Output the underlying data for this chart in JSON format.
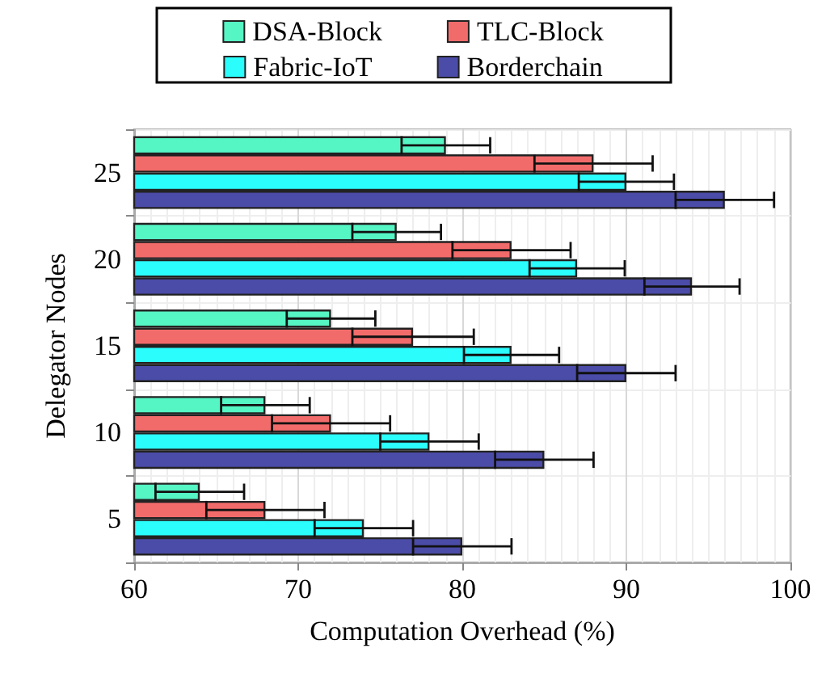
{
  "chart_data": {
    "type": "bar",
    "orientation": "horizontal",
    "xlabel": "Computation Overhead (%)",
    "ylabel": "Delegator Nodes",
    "categories": [
      "25",
      "20",
      "15",
      "10",
      "5"
    ],
    "series": [
      {
        "name": "DSA-Block",
        "color": "#55f5c4",
        "values": [
          79,
          76,
          72,
          68,
          64
        ],
        "errors": [
          2.7,
          2.7,
          2.7,
          2.7,
          2.7
        ]
      },
      {
        "name": "TLC-Block",
        "color": "#f26b6b",
        "values": [
          88,
          83,
          77,
          72,
          68
        ],
        "errors": [
          3.6,
          3.6,
          3.7,
          3.6,
          3.6
        ]
      },
      {
        "name": "Fabric-IoT",
        "color": "#2bfcfc",
        "values": [
          90,
          87,
          83,
          78,
          74
        ],
        "errors": [
          2.9,
          2.9,
          2.9,
          3,
          3
        ]
      },
      {
        "name": "Borderchain",
        "color": "#4b4ba8",
        "values": [
          96,
          94,
          90,
          85,
          80
        ],
        "errors": [
          3,
          2.9,
          3,
          3,
          3
        ]
      }
    ],
    "xlim": [
      60,
      100
    ],
    "xticks": [
      60,
      70,
      80,
      90,
      100
    ],
    "grid": true,
    "legend": "top"
  }
}
